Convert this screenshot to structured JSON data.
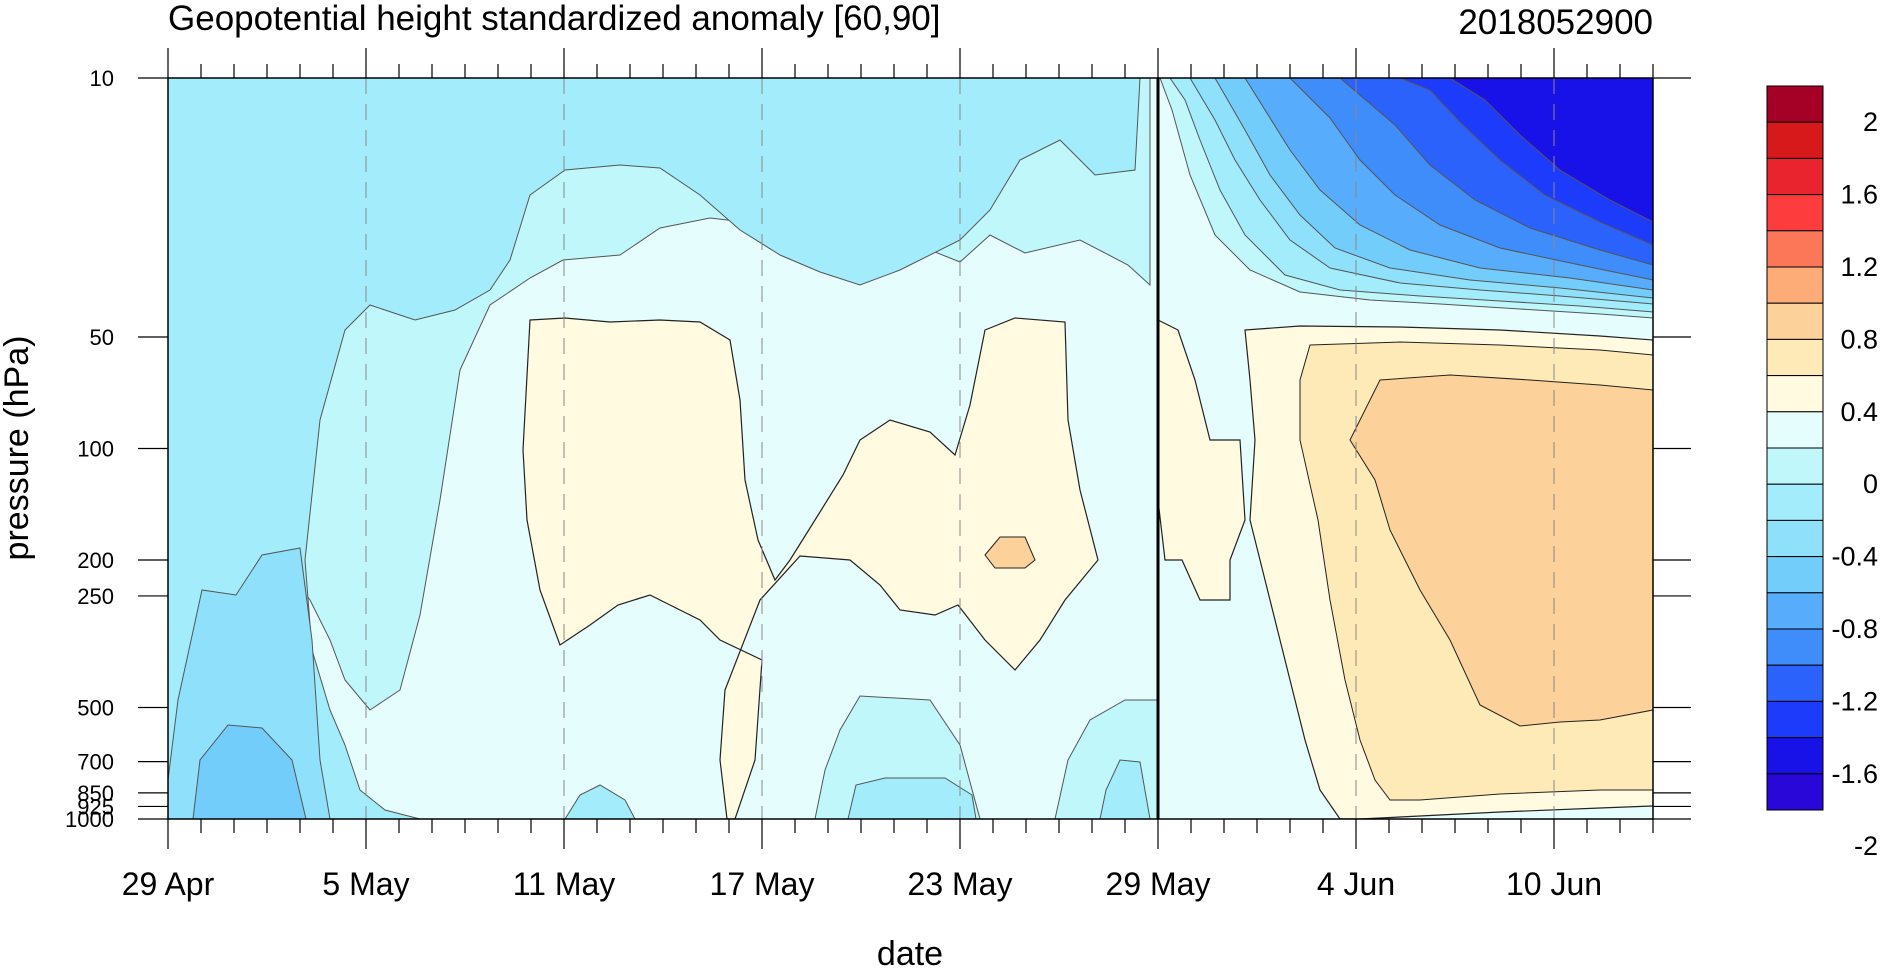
{
  "chart_data": {
    "type": "heatmap",
    "title": "Geopotential height standardized anomaly [60,90]",
    "subtitle_right": "2018052900",
    "xlabel": "date",
    "ylabel": "pressure (hPa)",
    "x_ticks": [
      "29 Apr",
      "5 May",
      "11 May",
      "17 May",
      "23 May",
      "29 May",
      "4 Jun",
      "10 Jun"
    ],
    "x_tick_days": [
      0,
      6,
      12,
      18,
      24,
      30,
      36,
      42
    ],
    "xlim_days": [
      0,
      45
    ],
    "y_ticks": [
      10,
      50,
      100,
      200,
      250,
      500,
      700,
      850,
      925,
      1000
    ],
    "y_scale": "log",
    "ylim": [
      1000,
      10
    ],
    "forecast_start": "29 May",
    "forecast_start_day": 30,
    "colorbar": {
      "labels": [
        "2",
        "1.6",
        "1.2",
        "0.8",
        "0.4",
        "0",
        "-0.4",
        "-0.8",
        "-1.2",
        "-1.6",
        "-2"
      ],
      "colors": [
        "#a50026",
        "#d7191c",
        "#e9242e",
        "#fd3d3d",
        "#fb7757",
        "#fdab77",
        "#fdd19a",
        "#feeab6",
        "#fffae0",
        "#e6fdfd",
        "#bff7fb",
        "#a2ecfb",
        "#8fe1fb",
        "#72cdfb",
        "#57acfb",
        "#3f8cfb",
        "#2b62fb",
        "#1d3bfb",
        "#1811e8",
        "#2807d8"
      ]
    },
    "palette": {
      "pos_02": "#fffae0",
      "pos_04": "#feeab6",
      "pos_06": "#fdd19a",
      "neg_02": "#e6fdfd",
      "neg_04": "#bff7fb",
      "neg_06": "#a2ecfb",
      "neg_08": "#8fe1fb",
      "neg_10": "#72cdfb",
      "neg_12": "#57acfb",
      "neg_14": "#3f8cfb",
      "neg_16": "#2b62fb",
      "neg_18": "#1d3bfb",
      "neg_20": "#1811e8",
      "neg_22": "#2807d8"
    }
  }
}
